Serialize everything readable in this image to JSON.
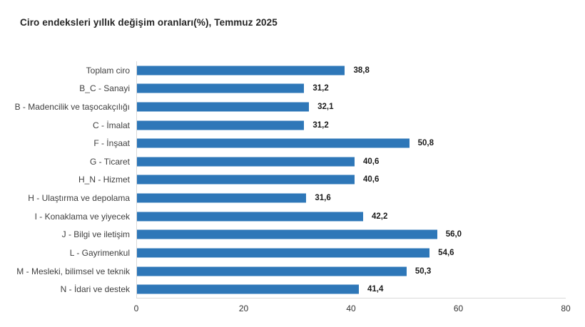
{
  "chart_data": {
    "type": "bar",
    "orientation": "horizontal",
    "title": "Ciro endeksleri yıllık değişim oranları(%), Temmuz 2025",
    "categories": [
      "Toplam ciro",
      "B_C - Sanayi",
      "B - Madencilik ve taşocakçılığı",
      "C - İmalat",
      "F - İnşaat",
      "G - Ticaret",
      "H_N - Hizmet",
      "H - Ulaştırma ve depolama",
      "I - Konaklama ve yiyecek",
      "J - Bilgi ve iletişim",
      "L - Gayrimenkul",
      "M - Mesleki, bilimsel ve teknik",
      "N - İdari ve destek"
    ],
    "values": [
      38.8,
      31.2,
      32.1,
      31.2,
      50.8,
      40.6,
      40.6,
      31.6,
      42.2,
      56.0,
      54.6,
      50.3,
      41.4
    ],
    "value_labels": [
      "38,8",
      "31,2",
      "32,1",
      "31,2",
      "50,8",
      "40,6",
      "40,6",
      "31,6",
      "42,2",
      "56,0",
      "54,6",
      "50,3",
      "41,4"
    ],
    "xlabel": "",
    "ylabel": "",
    "xlim": [
      0,
      80
    ],
    "x_ticks": [
      0,
      20,
      40,
      60,
      80
    ],
    "bar_color": "#2e77b8",
    "grid": false,
    "legend": "none"
  }
}
